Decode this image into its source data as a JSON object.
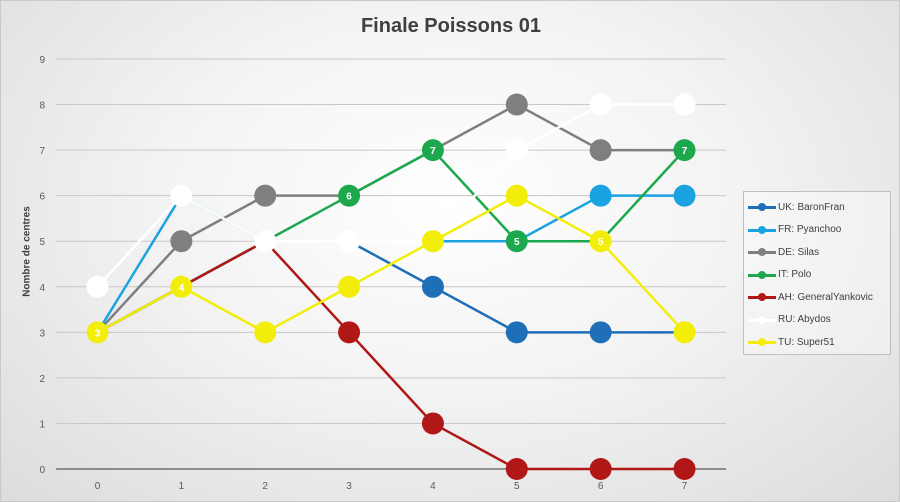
{
  "chart_data": {
    "type": "line",
    "title": "Finale Poissons 01",
    "xlabel": "",
    "ylabel": "Nombre de centres",
    "x": [
      0,
      1,
      2,
      3,
      4,
      5,
      6,
      7
    ],
    "ylim": [
      0,
      9
    ],
    "yticks": [
      "0",
      "1",
      "2",
      "3",
      "4",
      "5",
      "6",
      "7",
      "8",
      "9"
    ],
    "xticks": [
      "0",
      "1",
      "2",
      "3",
      "4",
      "5",
      "6",
      "7"
    ],
    "grid": true,
    "legend_position": "right",
    "series": [
      {
        "name": "UK: BaronFran",
        "color": "#1f6fb8",
        "values": [
          3,
          4,
          5,
          5,
          4,
          3,
          3,
          3
        ],
        "markers": [
          false,
          false,
          false,
          false,
          true,
          true,
          true,
          false
        ]
      },
      {
        "name": "FR: Pyanchoo",
        "color": "#1aa3e0",
        "values": [
          3,
          6,
          5,
          5,
          5,
          5,
          6,
          6
        ],
        "markers": [
          false,
          false,
          false,
          false,
          false,
          false,
          true,
          true
        ]
      },
      {
        "name": "DE: Silas",
        "color": "#7f7f7f",
        "values": [
          3,
          5,
          6,
          6,
          7,
          8,
          7,
          7
        ],
        "markers": [
          false,
          true,
          true,
          false,
          false,
          true,
          true,
          false
        ]
      },
      {
        "name": "IT: Polo",
        "color": "#1ea84e",
        "values": [
          3,
          4,
          5,
          6,
          7,
          5,
          5,
          7
        ],
        "markers": [
          false,
          false,
          false,
          true,
          true,
          true,
          false,
          true
        ],
        "labels": [
          "",
          "",
          "",
          "6",
          "7",
          "5",
          "",
          "7"
        ]
      },
      {
        "name": "AH: GeneralYankovic",
        "color": "#b01717",
        "values": [
          3,
          4,
          5,
          3,
          1,
          0,
          0,
          0
        ],
        "markers": [
          false,
          false,
          false,
          true,
          true,
          true,
          true,
          true
        ]
      },
      {
        "name": "RU: Abydos",
        "color": "#ffffff",
        "values": [
          4,
          6,
          5,
          5,
          5,
          7,
          8,
          8
        ],
        "markers": [
          true,
          true,
          true,
          true,
          false,
          true,
          true,
          true
        ]
      },
      {
        "name": "TU: Super51",
        "color": "#f2ee0a",
        "values": [
          3,
          4,
          3,
          4,
          5,
          6,
          5,
          3
        ],
        "markers": [
          true,
          true,
          true,
          true,
          true,
          true,
          true,
          true
        ],
        "labels": [
          "3",
          "4",
          "",
          "",
          "",
          "",
          "5",
          ""
        ]
      }
    ]
  }
}
